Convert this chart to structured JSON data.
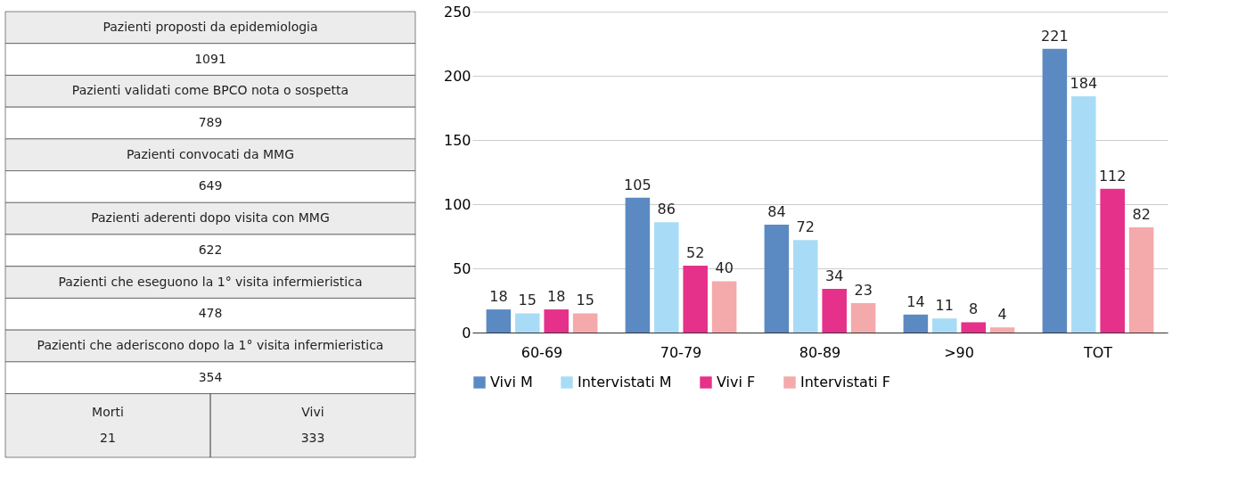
{
  "chart_data": [
    {
      "type": "other",
      "annotations": [
        "Pazienti proposti da epidemiologia",
        "1091",
        "Pazienti validati come BPCO nota o sospetta",
        "789",
        "Pazienti convocati da MMG",
        "649",
        "Pazienti aderenti dopo visita con MMG",
        "622",
        "Pazienti che eseguono la 1° visita infermieristica",
        "478",
        "Pazienti che aderiscono dopo la 1° visita infermieristica",
        "354",
        "Morti",
        "21",
        "Vivi",
        "333"
      ]
    },
    {
      "type": "bar",
      "categories": [
        "60-69",
        "70-79",
        "80-89",
        ">90",
        "TOT"
      ],
      "series": [
        {
          "name": "Vivi M",
          "color": "#5b8ac3",
          "values": [
            18,
            105,
            84,
            14,
            221
          ]
        },
        {
          "name": "Intervistati M",
          "color": "#a8dcf6",
          "values": [
            15,
            86,
            72,
            11,
            184
          ]
        },
        {
          "name": "Vivi F",
          "color": "#e5318a",
          "values": [
            18,
            52,
            34,
            8,
            112
          ]
        },
        {
          "name": "Intervistati F",
          "color": "#f4a9ab",
          "values": [
            15,
            40,
            23,
            4,
            82
          ]
        }
      ],
      "ylim": [
        0,
        250
      ],
      "yticks": [
        0,
        50,
        100,
        150,
        200,
        250
      ],
      "grid": "y",
      "legend": "bottom",
      "data_labels": true
    }
  ]
}
